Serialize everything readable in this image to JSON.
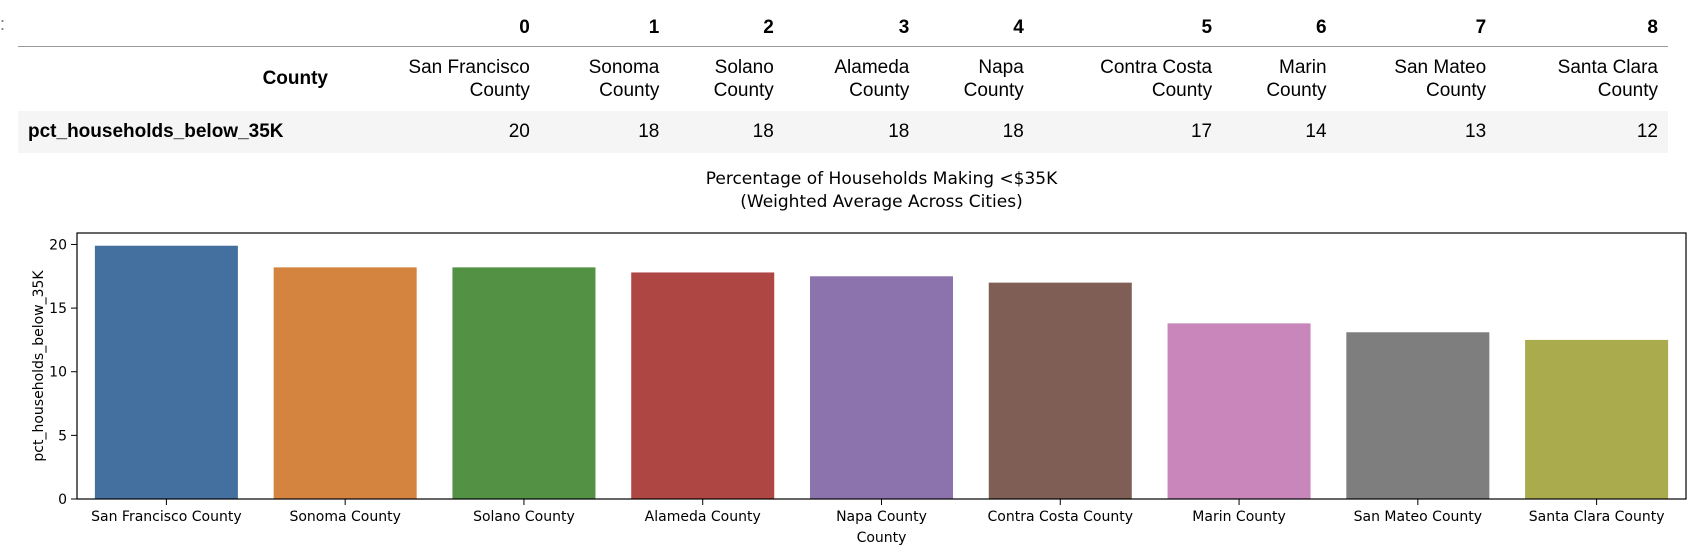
{
  "table": {
    "column_indices": [
      "0",
      "1",
      "2",
      "3",
      "4",
      "5",
      "6",
      "7",
      "8"
    ],
    "index_label_county": "County",
    "index_label_value": "pct_households_below_35K",
    "counties": [
      [
        "San Francisco",
        "County"
      ],
      [
        "Sonoma",
        "County"
      ],
      [
        "Solano",
        "County"
      ],
      [
        "Alameda",
        "County"
      ],
      [
        "Napa",
        "County"
      ],
      [
        "Contra Costa",
        "County"
      ],
      [
        "Marin",
        "County"
      ],
      [
        "San Mateo",
        "County"
      ],
      [
        "Santa Clara",
        "County"
      ]
    ],
    "values": [
      "20",
      "18",
      "18",
      "18",
      "18",
      "17",
      "14",
      "13",
      "12"
    ]
  },
  "chart_data": {
    "type": "bar",
    "title": "Percentage of Households Making <$35K\n(Weighted Average Across Cities)",
    "title_lines": [
      "Percentage of Households Making <$35K",
      "(Weighted Average Across Cities)"
    ],
    "xlabel": "County",
    "ylabel": "pct_households_below_35K",
    "categories": [
      "San Francisco County",
      "Sonoma County",
      "Solano County",
      "Alameda County",
      "Napa County",
      "Contra Costa County",
      "Marin County",
      "San Mateo County",
      "Santa Clara County"
    ],
    "values": [
      19.9,
      18.2,
      18.2,
      17.8,
      17.5,
      17.0,
      13.8,
      13.1,
      12.5
    ],
    "colors": [
      "#4470a0",
      "#d58440",
      "#539245",
      "#ae4744",
      "#8d73ad",
      "#7f5e55",
      "#c986bb",
      "#7e7e7e",
      "#a9ab4c"
    ],
    "yticks": [
      "0",
      "5",
      "10",
      "15",
      "20"
    ],
    "ylim": [
      0,
      20.9
    ],
    "grid": false,
    "legend": false
  }
}
